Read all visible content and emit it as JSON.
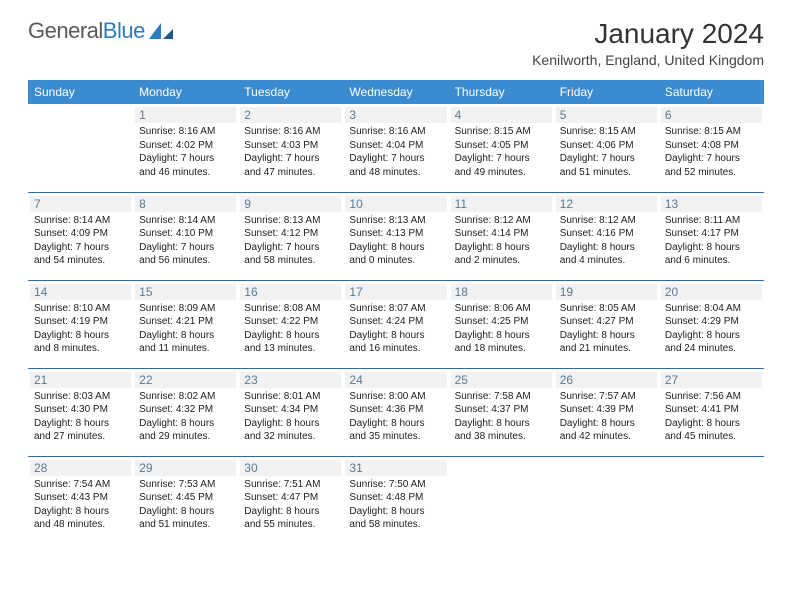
{
  "logo": {
    "text1": "General",
    "text2": "Blue"
  },
  "title": "January 2024",
  "location": "Kenilworth, England, United Kingdom",
  "header_bg": "#3b8bd0",
  "divider": "#2c6ca8",
  "daynum_color": "#5a7a94",
  "weekdays": [
    "Sunday",
    "Monday",
    "Tuesday",
    "Wednesday",
    "Thursday",
    "Friday",
    "Saturday"
  ],
  "weeks": [
    [
      null,
      {
        "n": "1",
        "sr": "8:16 AM",
        "ss": "4:02 PM",
        "dl": "7 hours and 46 minutes."
      },
      {
        "n": "2",
        "sr": "8:16 AM",
        "ss": "4:03 PM",
        "dl": "7 hours and 47 minutes."
      },
      {
        "n": "3",
        "sr": "8:16 AM",
        "ss": "4:04 PM",
        "dl": "7 hours and 48 minutes."
      },
      {
        "n": "4",
        "sr": "8:15 AM",
        "ss": "4:05 PM",
        "dl": "7 hours and 49 minutes."
      },
      {
        "n": "5",
        "sr": "8:15 AM",
        "ss": "4:06 PM",
        "dl": "7 hours and 51 minutes."
      },
      {
        "n": "6",
        "sr": "8:15 AM",
        "ss": "4:08 PM",
        "dl": "7 hours and 52 minutes."
      }
    ],
    [
      {
        "n": "7",
        "sr": "8:14 AM",
        "ss": "4:09 PM",
        "dl": "7 hours and 54 minutes."
      },
      {
        "n": "8",
        "sr": "8:14 AM",
        "ss": "4:10 PM",
        "dl": "7 hours and 56 minutes."
      },
      {
        "n": "9",
        "sr": "8:13 AM",
        "ss": "4:12 PM",
        "dl": "7 hours and 58 minutes."
      },
      {
        "n": "10",
        "sr": "8:13 AM",
        "ss": "4:13 PM",
        "dl": "8 hours and 0 minutes."
      },
      {
        "n": "11",
        "sr": "8:12 AM",
        "ss": "4:14 PM",
        "dl": "8 hours and 2 minutes."
      },
      {
        "n": "12",
        "sr": "8:12 AM",
        "ss": "4:16 PM",
        "dl": "8 hours and 4 minutes."
      },
      {
        "n": "13",
        "sr": "8:11 AM",
        "ss": "4:17 PM",
        "dl": "8 hours and 6 minutes."
      }
    ],
    [
      {
        "n": "14",
        "sr": "8:10 AM",
        "ss": "4:19 PM",
        "dl": "8 hours and 8 minutes."
      },
      {
        "n": "15",
        "sr": "8:09 AM",
        "ss": "4:21 PM",
        "dl": "8 hours and 11 minutes."
      },
      {
        "n": "16",
        "sr": "8:08 AM",
        "ss": "4:22 PM",
        "dl": "8 hours and 13 minutes."
      },
      {
        "n": "17",
        "sr": "8:07 AM",
        "ss": "4:24 PM",
        "dl": "8 hours and 16 minutes."
      },
      {
        "n": "18",
        "sr": "8:06 AM",
        "ss": "4:25 PM",
        "dl": "8 hours and 18 minutes."
      },
      {
        "n": "19",
        "sr": "8:05 AM",
        "ss": "4:27 PM",
        "dl": "8 hours and 21 minutes."
      },
      {
        "n": "20",
        "sr": "8:04 AM",
        "ss": "4:29 PM",
        "dl": "8 hours and 24 minutes."
      }
    ],
    [
      {
        "n": "21",
        "sr": "8:03 AM",
        "ss": "4:30 PM",
        "dl": "8 hours and 27 minutes."
      },
      {
        "n": "22",
        "sr": "8:02 AM",
        "ss": "4:32 PM",
        "dl": "8 hours and 29 minutes."
      },
      {
        "n": "23",
        "sr": "8:01 AM",
        "ss": "4:34 PM",
        "dl": "8 hours and 32 minutes."
      },
      {
        "n": "24",
        "sr": "8:00 AM",
        "ss": "4:36 PM",
        "dl": "8 hours and 35 minutes."
      },
      {
        "n": "25",
        "sr": "7:58 AM",
        "ss": "4:37 PM",
        "dl": "8 hours and 38 minutes."
      },
      {
        "n": "26",
        "sr": "7:57 AM",
        "ss": "4:39 PM",
        "dl": "8 hours and 42 minutes."
      },
      {
        "n": "27",
        "sr": "7:56 AM",
        "ss": "4:41 PM",
        "dl": "8 hours and 45 minutes."
      }
    ],
    [
      {
        "n": "28",
        "sr": "7:54 AM",
        "ss": "4:43 PM",
        "dl": "8 hours and 48 minutes."
      },
      {
        "n": "29",
        "sr": "7:53 AM",
        "ss": "4:45 PM",
        "dl": "8 hours and 51 minutes."
      },
      {
        "n": "30",
        "sr": "7:51 AM",
        "ss": "4:47 PM",
        "dl": "8 hours and 55 minutes."
      },
      {
        "n": "31",
        "sr": "7:50 AM",
        "ss": "4:48 PM",
        "dl": "8 hours and 58 minutes."
      },
      null,
      null,
      null
    ]
  ],
  "labels": {
    "sunrise": "Sunrise:",
    "sunset": "Sunset:",
    "daylight": "Daylight:"
  }
}
